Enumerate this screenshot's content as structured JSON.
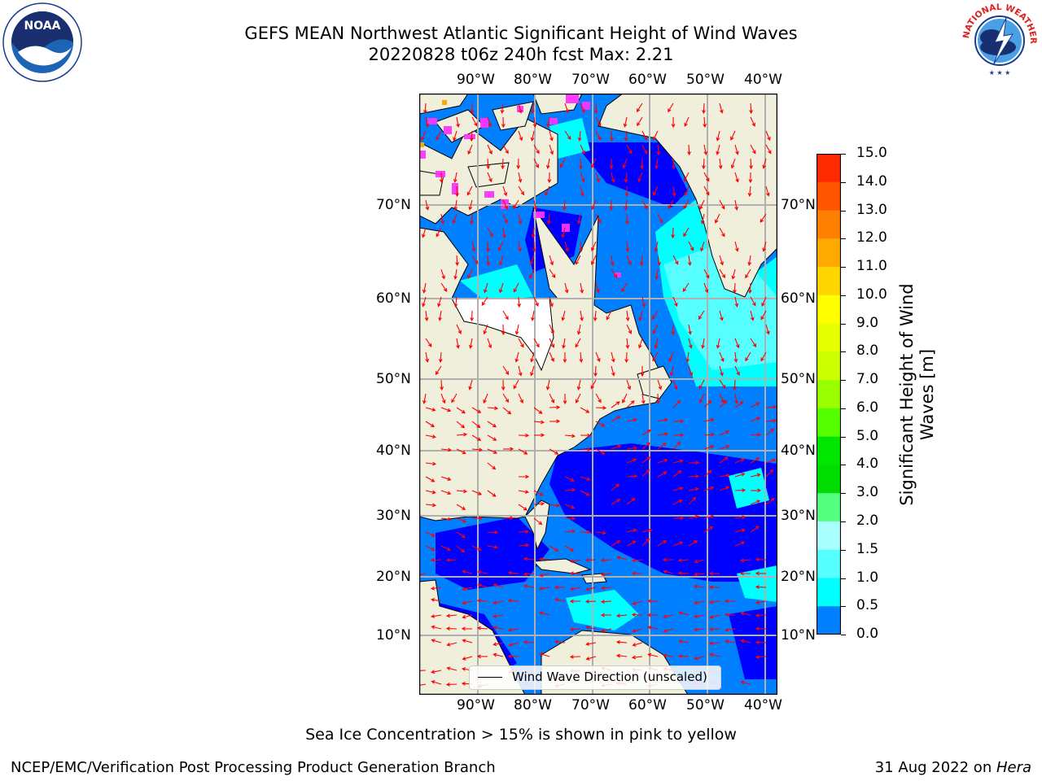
{
  "title": {
    "line1": "GEFS MEAN Northwest Atlantic Significant Height of Wind Waves",
    "line2": "20220828 t06z 240h fcst   Max: 2.21"
  },
  "logos": {
    "left": {
      "icon": "noaa-logo-icon",
      "text": "NOAA"
    },
    "right": {
      "icon": "nws-logo-icon",
      "text": "NATIONAL WEATHER SERVICE"
    }
  },
  "map": {
    "lon_labels": [
      "90°W",
      "80°W",
      "70°W",
      "60°W",
      "50°W",
      "40°W"
    ],
    "lat_labels": [
      "70°N",
      "60°N",
      "50°N",
      "40°N",
      "30°N",
      "20°N",
      "10°N"
    ],
    "legend_label": "Wind Wave Direction (unscaled)",
    "colors": {
      "land": "#efefdc",
      "ocean_low": "#0000ff",
      "ocean_mid": "#0080ff",
      "ocean_high": "#00ffff",
      "ice": "#ff33ff",
      "arrows": "#ff0000"
    }
  },
  "colorbar": {
    "label": "Significant Height of Wind Waves [m]",
    "ticks": [
      "15.0",
      "14.0",
      "13.0",
      "12.0",
      "11.0",
      "10.0",
      "9.0",
      "8.0",
      "7.0",
      "6.0",
      "5.0",
      "4.0",
      "3.0",
      "2.0",
      "1.5",
      "1.0",
      "0.5",
      "0.0"
    ],
    "colors": [
      "#ff0000",
      "#ff2a00",
      "#ff5500",
      "#ff8000",
      "#ffaa00",
      "#ffd500",
      "#ffff00",
      "#e6ff00",
      "#ccff00",
      "#99ff00",
      "#55ff00",
      "#00e600",
      "#00dd00",
      "#55ff80",
      "#aaffff",
      "#55ffff",
      "#00ffff",
      "#0080ff",
      "#0000ff"
    ]
  },
  "footer": {
    "note": "Sea Ice Concentration > 15% is shown in pink to yellow",
    "credit_left": "NCEP/EMC/Verification Post Processing Product Generation Branch",
    "credit_date": "31 Aug 2022 on ",
    "credit_host": "Hera"
  }
}
